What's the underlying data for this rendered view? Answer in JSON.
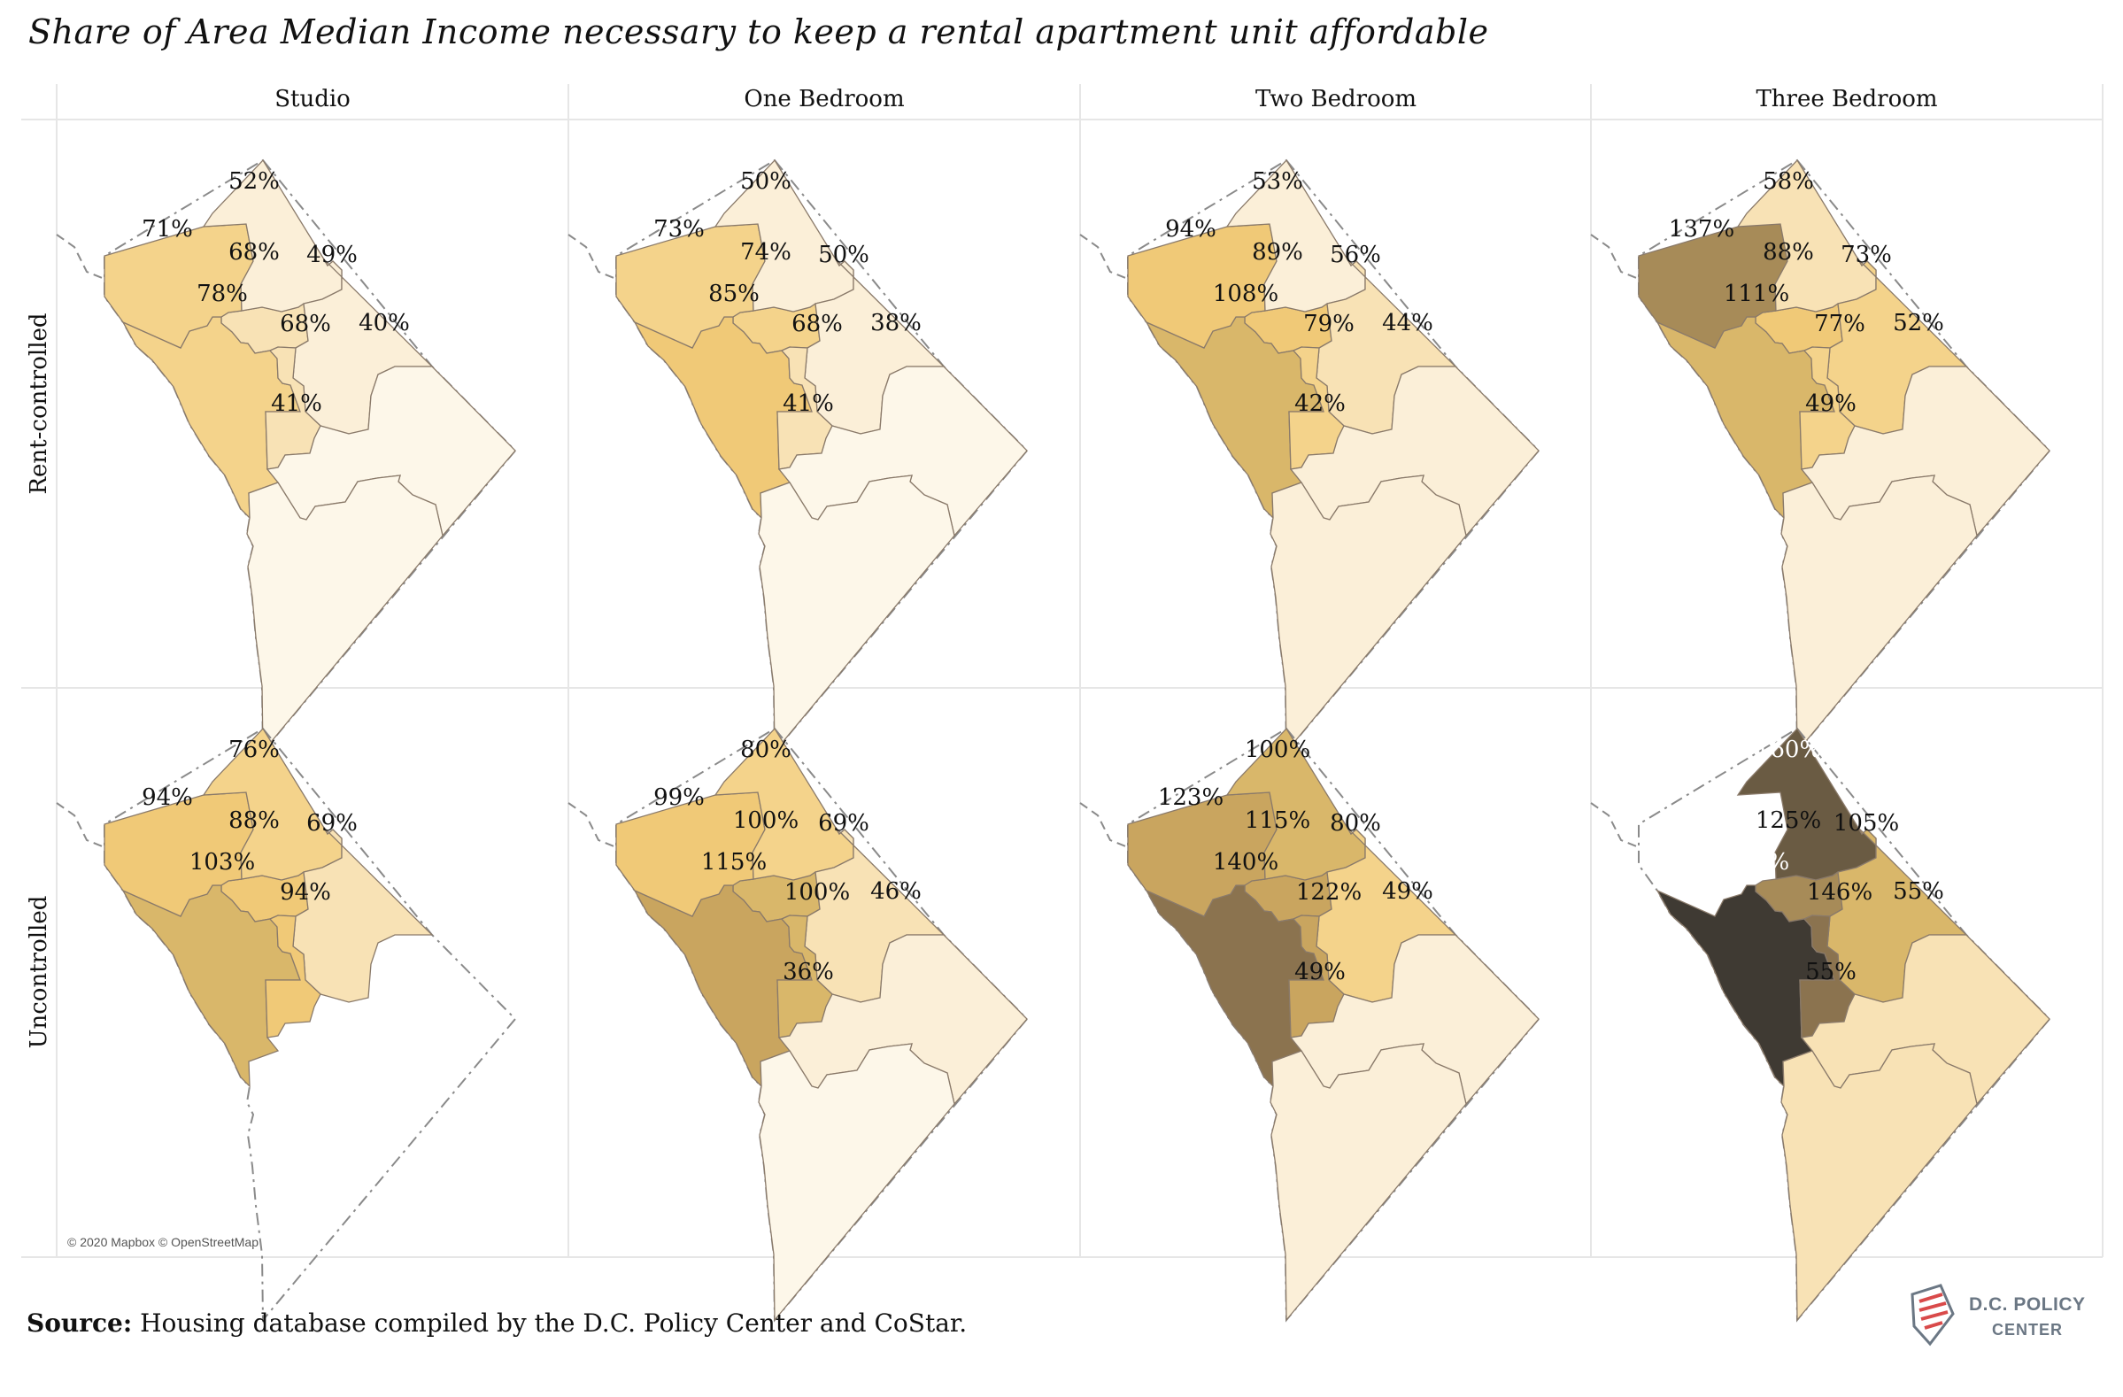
{
  "title": "Share of Area Median Income necessary to keep a rental apartment unit affordable",
  "columns": [
    "Studio",
    "One Bedroom",
    "Two Bedroom",
    "Three Bedroom"
  ],
  "rows": [
    "Rent-controlled",
    "Uncontrolled"
  ],
  "attribution": "© 2020 Mapbox © OpenStreetMap",
  "source": {
    "label": "Source:",
    "text": " Housing database compiled by the D.C. Policy Center and CoStar."
  },
  "logo": {
    "line1": "D.C. POLICY",
    "line2": "CENTER",
    "icon": "dc-map-stripes-icon"
  },
  "colors": {
    "scale": [
      "#fdf7e9",
      "#fbefd8",
      "#f8e2b5",
      "#f4d38b",
      "#f0c977",
      "#d9b76a",
      "#c9a55f",
      "#a78b58",
      "#8b734f",
      "#6a5b43",
      "#3f3a33"
    ],
    "border": "#8a7a6a",
    "dc_outline": "#9a9088",
    "grid_line": "#e6e6e6"
  },
  "wards": [
    "W1",
    "W2",
    "W3",
    "W4",
    "W5",
    "W6",
    "W7",
    "W8"
  ],
  "chart_data": {
    "type": "choropleth",
    "unit": "%",
    "panels": [
      {
        "row": "Rent-controlled",
        "col": "Studio",
        "values": {
          "W4": 52,
          "W3": 71,
          "W1": 68,
          "W5": 49,
          "W2": 78,
          "W6": 68,
          "W7": 40,
          "W8": 41
        }
      },
      {
        "row": "Rent-controlled",
        "col": "One Bedroom",
        "values": {
          "W4": 50,
          "W3": 73,
          "W1": 74,
          "W5": 50,
          "W2": 85,
          "W6": 68,
          "W7": 38,
          "W8": 41
        }
      },
      {
        "row": "Rent-controlled",
        "col": "Two Bedroom",
        "values": {
          "W4": 53,
          "W3": 94,
          "W1": 89,
          "W5": 56,
          "W2": 108,
          "W6": 79,
          "W7": 44,
          "W8": 42
        }
      },
      {
        "row": "Rent-controlled",
        "col": "Three Bedroom",
        "values": {
          "W4": 58,
          "W3": 137,
          "W1": 88,
          "W5": 73,
          "W2": 111,
          "W6": 77,
          "W7": 52,
          "W8": 49
        }
      },
      {
        "row": "Uncontrolled",
        "col": "Studio",
        "values": {
          "W4": 76,
          "W3": 94,
          "W1": 88,
          "W5": 69,
          "W2": 103,
          "W6": 94
        }
      },
      {
        "row": "Uncontrolled",
        "col": "One Bedroom",
        "values": {
          "W4": 80,
          "W3": 99,
          "W1": 100,
          "W5": 69,
          "W2": 115,
          "W6": 100,
          "W7": 46,
          "W8": 36
        }
      },
      {
        "row": "Uncontrolled",
        "col": "Two Bedroom",
        "values": {
          "W4": 100,
          "W3": 123,
          "W1": 115,
          "W5": 80,
          "W2": 140,
          "W6": 122,
          "W7": 49,
          "W8": 49
        }
      },
      {
        "row": "Uncontrolled",
        "col": "Three Bedroom",
        "values": {
          "W4": 160,
          "W1": 125,
          "W5": 105,
          "W2": 178,
          "W6": 146,
          "W7": 55,
          "W8": 55
        }
      }
    ]
  }
}
